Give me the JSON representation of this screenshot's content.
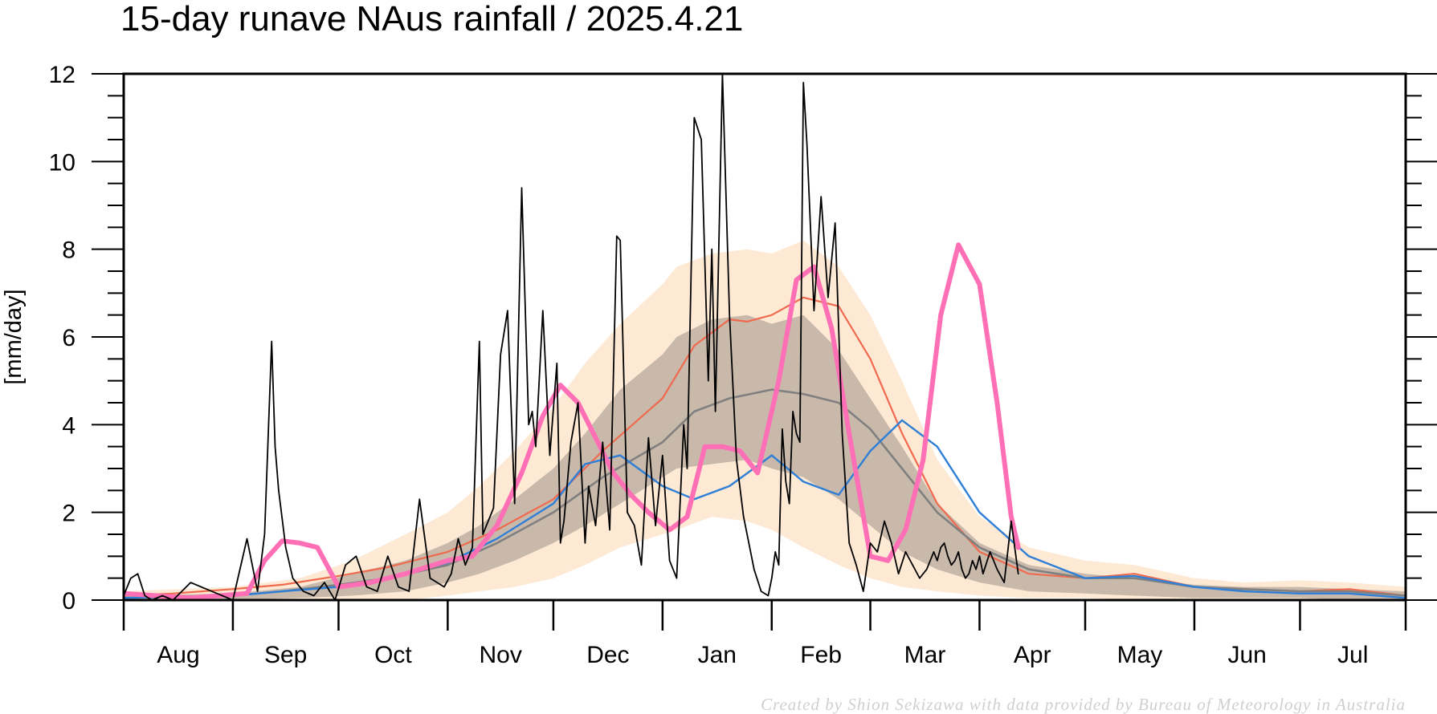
{
  "chart_data": {
    "type": "line",
    "title": "15-day runave NAus rainfall  /  2025.4.21",
    "ylabel": "[mm/day]",
    "xlabel": "",
    "credit": "Created by Shion Sekizawa with data provided by Bureau of Meteorology in Australia",
    "ylim": [
      0,
      12
    ],
    "y_ticks": [
      "0",
      "2",
      "4",
      "6",
      "8",
      "10",
      "12"
    ],
    "x_start": "2024-08-01",
    "x_end": "2025-07-31",
    "months": [
      {
        "label": "Aug",
        "start": "2024-08-01"
      },
      {
        "label": "Sep",
        "start": "2024-09-01"
      },
      {
        "label": "Oct",
        "start": "2024-10-01"
      },
      {
        "label": "Nov",
        "start": "2024-11-01"
      },
      {
        "label": "Dec",
        "start": "2024-12-01"
      },
      {
        "label": "Jan",
        "start": "2025-01-01"
      },
      {
        "label": "Feb",
        "start": "2025-02-01"
      },
      {
        "label": "Mar",
        "start": "2025-03-01"
      },
      {
        "label": "Apr",
        "start": "2025-04-01"
      },
      {
        "label": "May",
        "start": "2025-05-01"
      },
      {
        "label": "Jun",
        "start": "2025-06-01"
      },
      {
        "label": "Jul",
        "start": "2025-07-01"
      }
    ],
    "climatology_outer_band": {
      "color": "#fde9d4",
      "x": [
        "2024-08-01",
        "2024-09-01",
        "2024-09-20",
        "2024-10-05",
        "2024-10-20",
        "2024-11-01",
        "2024-11-10",
        "2024-11-20",
        "2024-12-01",
        "2024-12-10",
        "2024-12-20",
        "2025-01-01",
        "2025-01-05",
        "2025-01-15",
        "2025-01-25",
        "2025-02-01",
        "2025-02-10",
        "2025-02-20",
        "2025-03-01",
        "2025-03-10",
        "2025-03-20",
        "2025-04-01",
        "2025-04-15",
        "2025-05-01",
        "2025-05-15",
        "2025-06-01",
        "2025-06-15",
        "2025-07-01",
        "2025-07-15",
        "2025-07-31"
      ],
      "upper": [
        0.2,
        0.3,
        0.5,
        0.9,
        1.5,
        2.0,
        2.6,
        3.4,
        4.4,
        5.4,
        6.3,
        7.2,
        7.6,
        7.9,
        8.0,
        7.9,
        8.2,
        7.6,
        6.5,
        5.0,
        3.2,
        1.9,
        1.2,
        0.9,
        0.8,
        0.5,
        0.4,
        0.45,
        0.4,
        0.3
      ],
      "lower": [
        0,
        0,
        0,
        0,
        0,
        0.1,
        0.2,
        0.3,
        0.5,
        0.8,
        1.2,
        1.5,
        1.6,
        1.9,
        1.8,
        1.6,
        1.2,
        0.8,
        0.5,
        0.3,
        0.2,
        0.1,
        0.05,
        0.05,
        0,
        0,
        0,
        0,
        0,
        0
      ]
    },
    "climatology_inner_band": {
      "color": "#c8b9ab",
      "x": [
        "2024-08-01",
        "2024-09-01",
        "2024-09-20",
        "2024-10-05",
        "2024-10-20",
        "2024-11-01",
        "2024-11-10",
        "2024-11-20",
        "2024-12-01",
        "2024-12-10",
        "2024-12-20",
        "2025-01-01",
        "2025-01-05",
        "2025-01-15",
        "2025-01-25",
        "2025-02-01",
        "2025-02-10",
        "2025-02-20",
        "2025-03-01",
        "2025-03-10",
        "2025-03-20",
        "2025-04-01",
        "2025-04-15",
        "2025-05-01",
        "2025-05-15",
        "2025-06-01",
        "2025-06-15",
        "2025-07-01",
        "2025-07-15",
        "2025-07-31"
      ],
      "upper": [
        0.1,
        0.15,
        0.3,
        0.6,
        0.9,
        1.3,
        1.7,
        2.3,
        3.0,
        3.8,
        4.8,
        5.6,
        6.0,
        6.4,
        6.5,
        6.3,
        6.5,
        5.7,
        4.6,
        3.5,
        2.2,
        1.3,
        0.8,
        0.6,
        0.5,
        0.35,
        0.3,
        0.3,
        0.25,
        0.2
      ],
      "lower": [
        0,
        0,
        0.05,
        0.1,
        0.2,
        0.4,
        0.6,
        0.9,
        1.3,
        1.7,
        2.2,
        2.8,
        3.0,
        3.1,
        3.2,
        3.0,
        2.8,
        2.3,
        1.7,
        1.1,
        0.7,
        0.4,
        0.2,
        0.15,
        0.1,
        0.05,
        0.05,
        0.05,
        0,
        0
      ]
    },
    "series": [
      {
        "color": "#ef6a4e",
        "x": [
          "2024-08-01",
          "2024-08-15",
          "2024-09-01",
          "2024-09-15",
          "2024-10-01",
          "2024-10-15",
          "2024-11-01",
          "2024-11-15",
          "2024-12-01",
          "2024-12-15",
          "2025-01-01",
          "2025-01-10",
          "2025-01-20",
          "2025-01-25",
          "2025-02-01",
          "2025-02-10",
          "2025-02-20",
          "2025-03-01",
          "2025-03-10",
          "2025-03-20",
          "2025-04-01",
          "2025-04-15",
          "2025-05-01",
          "2025-05-15",
          "2025-06-01",
          "2025-06-15",
          "2025-07-01",
          "2025-07-15",
          "2025-07-31"
        ],
        "y": [
          0.1,
          0.15,
          0.25,
          0.35,
          0.55,
          0.75,
          1.1,
          1.6,
          2.3,
          3.4,
          4.6,
          5.8,
          6.4,
          6.35,
          6.5,
          6.9,
          6.7,
          5.5,
          3.8,
          2.2,
          1.1,
          0.6,
          0.5,
          0.6,
          0.3,
          0.25,
          0.2,
          0.25,
          0.1
        ]
      },
      {
        "color": "#808080",
        "x": [
          "2024-08-01",
          "2024-09-01",
          "2024-09-15",
          "2024-10-01",
          "2024-10-15",
          "2024-11-01",
          "2024-11-15",
          "2024-12-01",
          "2024-12-15",
          "2025-01-01",
          "2025-01-10",
          "2025-01-20",
          "2025-02-01",
          "2025-02-10",
          "2025-02-20",
          "2025-03-01",
          "2025-03-10",
          "2025-03-20",
          "2025-04-01",
          "2025-04-15",
          "2025-05-01",
          "2025-05-15",
          "2025-06-01",
          "2025-06-15",
          "2025-07-01",
          "2025-07-15",
          "2025-07-31"
        ],
        "y": [
          0.05,
          0.1,
          0.2,
          0.35,
          0.5,
          0.8,
          1.3,
          2.0,
          2.8,
          3.6,
          4.3,
          4.6,
          4.8,
          4.7,
          4.5,
          3.9,
          3.0,
          2.0,
          1.2,
          0.7,
          0.5,
          0.5,
          0.3,
          0.25,
          0.2,
          0.2,
          0.1
        ]
      },
      {
        "color": "#2f7fd6",
        "x": [
          "2024-08-01",
          "2024-09-01",
          "2024-09-15",
          "2024-10-01",
          "2024-10-15",
          "2024-11-01",
          "2024-11-15",
          "2024-12-01",
          "2024-12-10",
          "2024-12-20",
          "2025-01-01",
          "2025-01-10",
          "2025-01-20",
          "2025-02-01",
          "2025-02-10",
          "2025-02-20",
          "2025-03-01",
          "2025-03-10",
          "2025-03-20",
          "2025-04-01",
          "2025-04-15",
          "2025-05-01",
          "2025-05-15",
          "2025-06-01",
          "2025-06-15",
          "2025-07-01",
          "2025-07-15",
          "2025-07-31"
        ],
        "y": [
          0.05,
          0.1,
          0.2,
          0.3,
          0.5,
          0.85,
          1.4,
          2.2,
          3.1,
          3.3,
          2.6,
          2.3,
          2.6,
          3.3,
          2.7,
          2.4,
          3.4,
          4.1,
          3.5,
          2.0,
          1.0,
          0.5,
          0.55,
          0.3,
          0.2,
          0.15,
          0.15,
          0.05
        ]
      },
      {
        "color": "#ff6fb5",
        "x": [
          "2024-08-01",
          "2024-08-10",
          "2024-08-20",
          "2024-09-05",
          "2024-09-10",
          "2024-09-15",
          "2024-09-20",
          "2024-09-25",
          "2024-10-01",
          "2024-10-10",
          "2024-10-20",
          "2024-11-01",
          "2024-11-08",
          "2024-11-15",
          "2024-11-22",
          "2024-11-28",
          "2024-12-03",
          "2024-12-08",
          "2024-12-13",
          "2024-12-18",
          "2024-12-23",
          "2024-12-28",
          "2025-01-03",
          "2025-01-08",
          "2025-01-13",
          "2025-01-18",
          "2025-01-23",
          "2025-01-28",
          "2025-02-03",
          "2025-02-08",
          "2025-02-13",
          "2025-02-18",
          "2025-02-23",
          "2025-03-01",
          "2025-03-06",
          "2025-03-11",
          "2025-03-16",
          "2025-03-21",
          "2025-03-26",
          "2025-04-01",
          "2025-04-06",
          "2025-04-10",
          "2025-04-12"
        ],
        "y": [
          0.15,
          0.1,
          0.05,
          0.15,
          0.9,
          1.35,
          1.3,
          1.2,
          0.3,
          0.4,
          0.6,
          0.9,
          1.0,
          1.7,
          2.9,
          4.2,
          4.9,
          4.5,
          3.7,
          2.9,
          2.4,
          2.0,
          1.6,
          1.9,
          3.5,
          3.5,
          3.4,
          2.9,
          5.0,
          7.3,
          7.6,
          6.2,
          3.8,
          1.0,
          0.9,
          1.6,
          3.2,
          6.5,
          8.1,
          7.2,
          4.5,
          1.9,
          1.2
        ]
      },
      {
        "color": "#000000",
        "x": [
          "2024-08-01",
          "2024-08-03",
          "2024-08-05",
          "2024-08-07",
          "2024-08-09",
          "2024-08-12",
          "2024-08-15",
          "2024-08-20",
          "2024-09-01",
          "2024-09-05",
          "2024-09-08",
          "2024-09-10",
          "2024-09-12",
          "2024-09-13",
          "2024-09-14",
          "2024-09-16",
          "2024-09-18",
          "2024-09-21",
          "2024-09-24",
          "2024-09-27",
          "2024-09-30",
          "2024-10-03",
          "2024-10-06",
          "2024-10-09",
          "2024-10-12",
          "2024-10-15",
          "2024-10-18",
          "2024-10-21",
          "2024-10-24",
          "2024-10-27",
          "2024-10-29",
          "2024-10-31",
          "2024-11-02",
          "2024-11-04",
          "2024-11-06",
          "2024-11-08",
          "2024-11-10",
          "2024-11-11",
          "2024-11-12",
          "2024-11-14",
          "2024-11-16",
          "2024-11-18",
          "2024-11-20",
          "2024-11-22",
          "2024-11-24",
          "2024-11-25",
          "2024-11-26",
          "2024-11-28",
          "2024-11-30",
          "2024-12-02",
          "2024-12-03",
          "2024-12-04",
          "2024-12-06",
          "2024-12-08",
          "2024-12-10",
          "2024-12-11",
          "2024-12-13",
          "2024-12-15",
          "2024-12-17",
          "2024-12-19",
          "2024-12-20",
          "2024-12-22",
          "2024-12-24",
          "2024-12-26",
          "2024-12-28",
          "2024-12-30",
          "2025-01-01",
          "2025-01-03",
          "2025-01-05",
          "2025-01-07",
          "2025-01-08",
          "2025-01-10",
          "2025-01-12",
          "2025-01-14",
          "2025-01-15",
          "2025-01-16",
          "2025-01-18",
          "2025-01-20",
          "2025-01-22",
          "2025-01-24",
          "2025-01-25",
          "2025-01-27",
          "2025-01-29",
          "2025-01-31",
          "2025-02-01",
          "2025-02-02",
          "2025-02-03",
          "2025-02-04",
          "2025-02-05",
          "2025-02-06",
          "2025-02-07",
          "2025-02-08",
          "2025-02-09",
          "2025-02-10",
          "2025-02-11",
          "2025-02-13",
          "2025-02-15",
          "2025-02-17",
          "2025-02-19",
          "2025-02-21",
          "2025-02-23",
          "2025-02-25",
          "2025-02-27",
          "2025-03-01",
          "2025-03-03",
          "2025-03-05",
          "2025-03-07",
          "2025-03-09",
          "2025-03-11",
          "2025-03-13",
          "2025-03-15",
          "2025-03-17",
          "2025-03-19",
          "2025-03-20",
          "2025-03-21",
          "2025-03-22",
          "2025-03-23",
          "2025-03-24",
          "2025-03-25",
          "2025-03-26",
          "2025-03-27",
          "2025-03-28",
          "2025-03-29",
          "2025-03-30",
          "2025-03-31",
          "2025-04-01",
          "2025-04-02",
          "2025-04-04",
          "2025-04-06",
          "2025-04-08",
          "2025-04-10",
          "2025-04-12"
        ],
        "y": [
          0.1,
          0.5,
          0.6,
          0.1,
          0.0,
          0.1,
          0.0,
          0.4,
          0.0,
          1.4,
          0.2,
          1.5,
          5.9,
          3.5,
          2.5,
          1.2,
          0.5,
          0.2,
          0.1,
          0.4,
          0.0,
          0.8,
          1.0,
          0.3,
          0.2,
          1.0,
          0.3,
          0.2,
          2.3,
          0.5,
          0.4,
          0.3,
          0.6,
          1.4,
          0.8,
          1.2,
          5.9,
          1.5,
          1.7,
          2.1,
          5.6,
          6.6,
          2.2,
          9.4,
          4.0,
          4.3,
          3.5,
          6.6,
          3.3,
          5.4,
          1.3,
          1.8,
          3.6,
          4.5,
          1.3,
          2.6,
          1.7,
          3.6,
          1.6,
          8.3,
          8.2,
          2.0,
          1.7,
          0.8,
          3.7,
          1.7,
          3.3,
          0.9,
          0.5,
          4.0,
          3.0,
          11.0,
          10.5,
          5.0,
          8.0,
          4.3,
          12.0,
          6.5,
          3.2,
          1.9,
          1.5,
          0.7,
          0.2,
          0.1,
          0.5,
          1.1,
          0.8,
          3.9,
          2.7,
          2.2,
          4.3,
          3.8,
          3.6,
          11.8,
          10.4,
          6.6,
          9.2,
          6.9,
          8.6,
          3.8,
          1.3,
          0.8,
          0.2,
          1.3,
          1.1,
          1.8,
          1.3,
          0.6,
          1.1,
          0.8,
          0.5,
          0.7,
          1.1,
          0.9,
          1.2,
          1.3,
          1.0,
          0.8,
          0.9,
          1.1,
          0.7,
          0.5,
          0.6,
          0.9,
          0.7,
          1.0,
          0.6,
          1.1,
          0.7,
          0.4,
          1.8,
          0.6
        ]
      }
    ]
  }
}
